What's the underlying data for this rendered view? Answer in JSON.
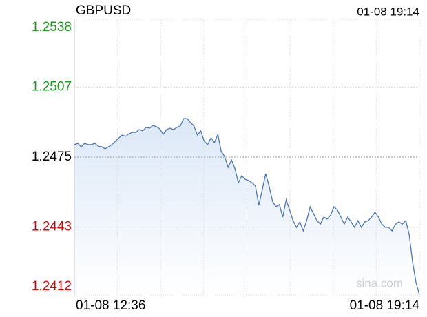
{
  "chart_data": {
    "type": "line",
    "title": "GBPUSD",
    "timestamp": "01-08 19:14",
    "x_start_label": "01-08 12:36",
    "x_end_label": "01-08 19:14",
    "watermark": "sina.com",
    "ylim": [
      1.2412,
      1.2538
    ],
    "yticks": [
      1.2412,
      1.2443,
      1.2475,
      1.2507,
      1.2538
    ],
    "tick_colors": [
      "#e60000",
      "#e60000",
      "#000000",
      "#1a9a1a",
      "#1a9a1a"
    ],
    "grid_colors": [
      "#d8d8d8",
      "#d8d8d8",
      "#999999",
      "#d8d8d8",
      "#d8d8d8"
    ],
    "grid": true,
    "color": "#4a74b8",
    "fill_color": "#dce8f8",
    "values": [
      1.24807,
      1.24813,
      1.24797,
      1.24813,
      1.24807,
      1.24807,
      1.24813,
      1.248,
      1.24797,
      1.24788,
      1.24797,
      1.24807,
      1.24823,
      1.24838,
      1.24851,
      1.24845,
      1.24857,
      1.24863,
      1.24863,
      1.24876,
      1.2487,
      1.24886,
      1.24882,
      1.24895,
      1.24889,
      1.24879,
      1.24854,
      1.24876,
      1.24882,
      1.24876,
      1.24886,
      1.24892,
      1.24926,
      1.24926,
      1.24908,
      1.24892,
      1.24851,
      1.2487,
      1.24823,
      1.24807,
      1.24838,
      1.24816,
      1.24854,
      1.24775,
      1.24753,
      1.24703,
      1.24737,
      1.24697,
      1.24633,
      1.24665,
      1.24649,
      1.24643,
      1.24633,
      1.24618,
      1.2453,
      1.24602,
      1.24674,
      1.24618,
      1.24548,
      1.24523,
      1.24533,
      1.24476,
      1.24555,
      1.24508,
      1.2446,
      1.24429,
      1.24454,
      1.24413,
      1.2446,
      1.24523,
      1.24492,
      1.2446,
      1.24444,
      1.24476,
      1.24467,
      1.24485,
      1.24523,
      1.24508,
      1.24476,
      1.24444,
      1.24476,
      1.24454,
      1.24429,
      1.2446,
      1.24429,
      1.24454,
      1.2446,
      1.24476,
      1.24498,
      1.24476,
      1.24444,
      1.24429,
      1.24429,
      1.24413,
      1.24444,
      1.24454,
      1.24444,
      1.2446,
      1.24397,
      1.24271,
      1.24177,
      1.2412
    ]
  }
}
